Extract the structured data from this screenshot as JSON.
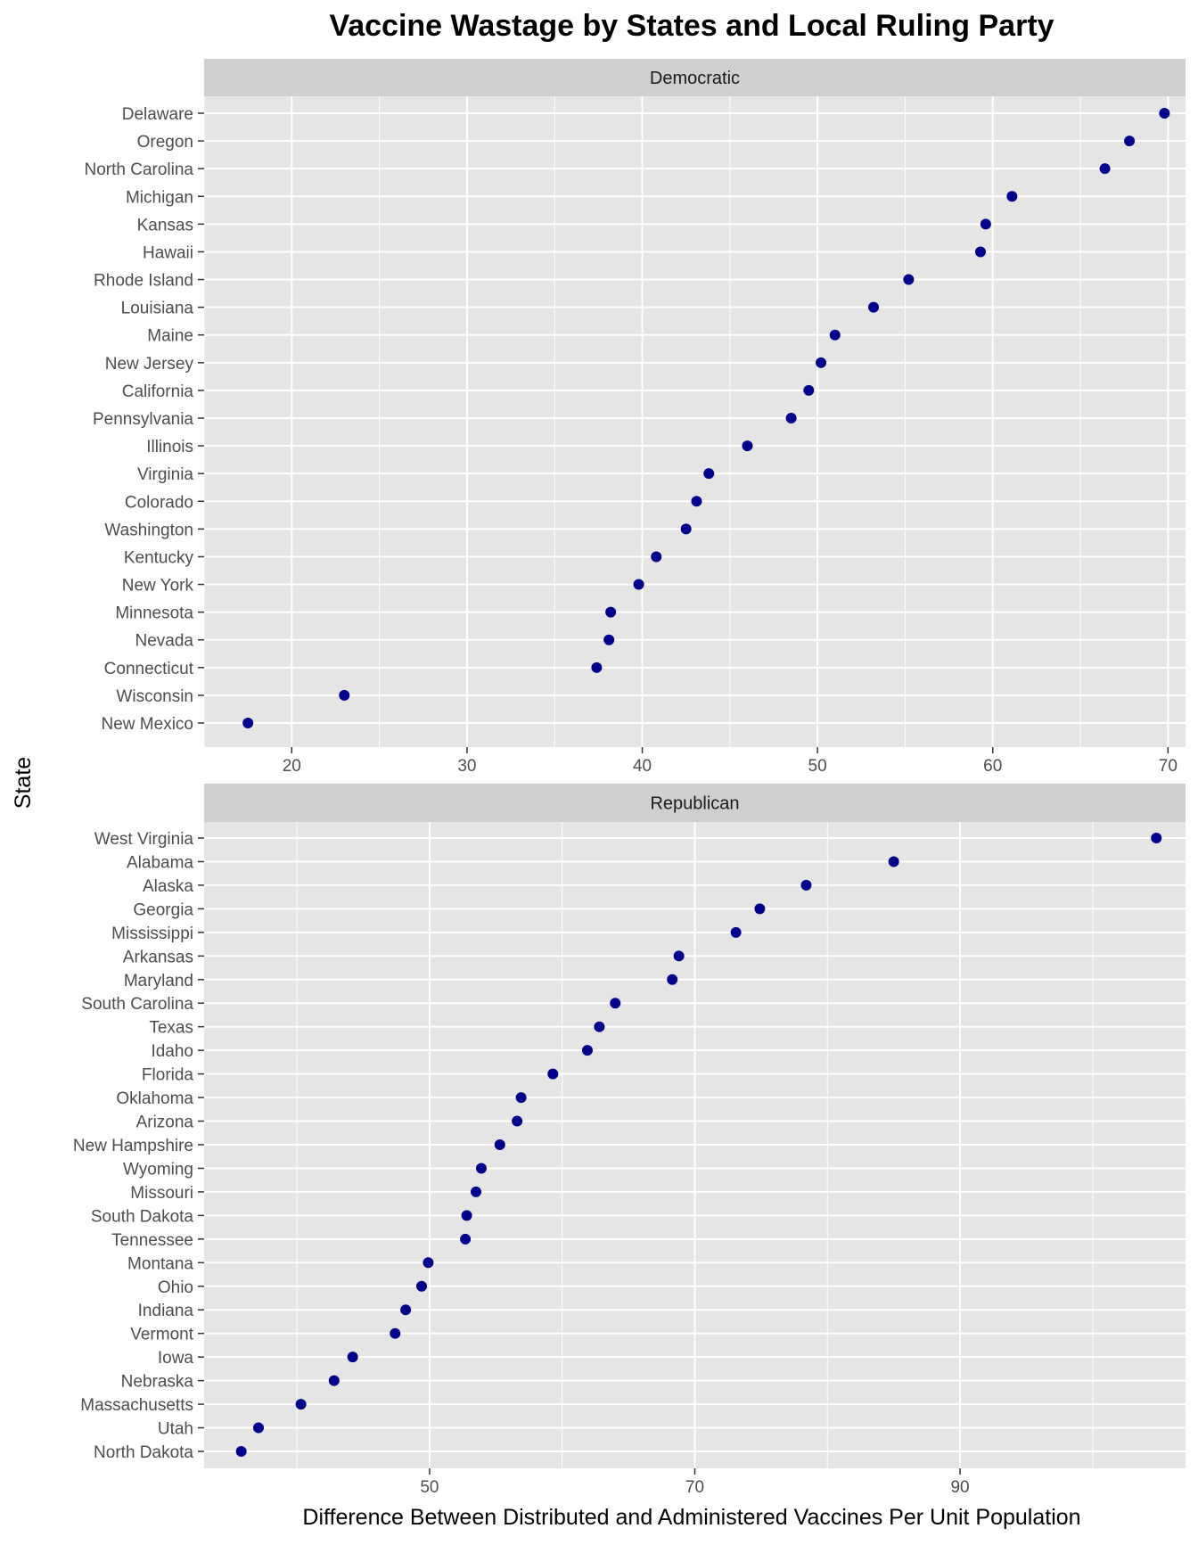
{
  "title": "Vaccine Wastage by States and Local Ruling Party",
  "xlabel": "Difference Between Distributed and Administered Vaccines Per Unit Population",
  "ylabel": "State",
  "colors": {
    "point": "#00008B",
    "panel_bg": "#E5E5E5",
    "strip_bg": "#CFCFCF",
    "grid": "#FFFFFF",
    "text": "#222222",
    "tick_text": "#4D4D4D"
  },
  "chart_data": [
    {
      "type": "scatter",
      "panel": "Democratic",
      "xlim": [
        15,
        71
      ],
      "xticks": [
        20,
        30,
        40,
        50,
        60,
        70
      ],
      "grid": true,
      "categories": [
        "Delaware",
        "Oregon",
        "North Carolina",
        "Michigan",
        "Kansas",
        "Hawaii",
        "Rhode Island",
        "Louisiana",
        "Maine",
        "New Jersey",
        "California",
        "Pennsylvania",
        "Illinois",
        "Virginia",
        "Colorado",
        "Washington",
        "Kentucky",
        "New York",
        "Minnesota",
        "Nevada",
        "Connecticut",
        "Wisconsin",
        "New Mexico"
      ],
      "values": [
        69.8,
        67.8,
        66.4,
        61.1,
        59.6,
        59.3,
        55.2,
        53.2,
        51.0,
        50.2,
        49.5,
        48.5,
        46.0,
        43.8,
        43.1,
        42.5,
        40.8,
        39.8,
        38.2,
        38.1,
        37.4,
        23.0,
        17.5
      ]
    },
    {
      "type": "scatter",
      "panel": "Republican",
      "xlim": [
        33,
        107
      ],
      "xticks": [
        50,
        70,
        90
      ],
      "grid": true,
      "categories": [
        "West Virginia",
        "Alabama",
        "Alaska",
        "Georgia",
        "Mississippi",
        "Arkansas",
        "Maryland",
        "South Carolina",
        "Texas",
        "Idaho",
        "Florida",
        "Oklahoma",
        "Arizona",
        "New Hampshire",
        "Wyoming",
        "Missouri",
        "South Dakota",
        "Tennessee",
        "Montana",
        "Ohio",
        "Indiana",
        "Vermont",
        "Iowa",
        "Nebraska",
        "Massachusetts",
        "Utah",
        "North Dakota"
      ],
      "values": [
        104.8,
        85.0,
        78.4,
        74.9,
        73.1,
        68.8,
        68.3,
        64.0,
        62.8,
        61.9,
        59.3,
        56.9,
        56.6,
        55.3,
        53.9,
        53.5,
        52.8,
        52.7,
        49.9,
        49.4,
        48.2,
        47.4,
        44.2,
        42.8,
        40.3,
        37.1,
        35.8
      ]
    }
  ]
}
